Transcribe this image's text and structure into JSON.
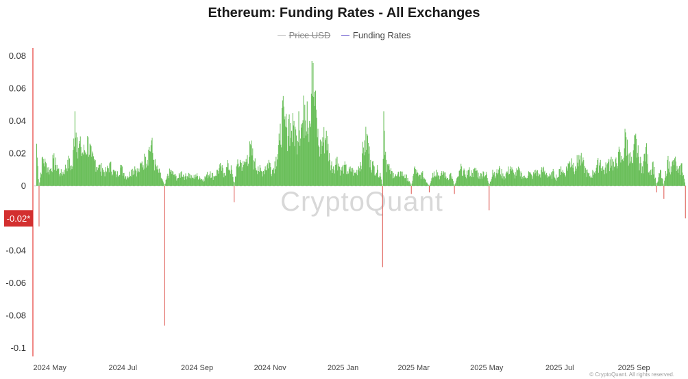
{
  "chart_data": {
    "type": "bar",
    "title": "Ethereum: Funding Rates - All Exchanges",
    "legend": [
      {
        "label": "Price USD",
        "color": "#bdbdbd",
        "disabled": true
      },
      {
        "label": "Funding Rates",
        "color": "#6a5acd",
        "disabled": false
      }
    ],
    "series": [
      {
        "name": "Funding Rates",
        "positive_color": "#6abf5a",
        "negative_color": "#e0605a"
      }
    ],
    "ylim": [
      -0.105,
      0.085
    ],
    "yticks": [
      {
        "value": 0.08,
        "label": "0.08"
      },
      {
        "value": 0.06,
        "label": "0.06"
      },
      {
        "value": 0.04,
        "label": "0.04"
      },
      {
        "value": 0.02,
        "label": "0.02"
      },
      {
        "value": 0,
        "label": "0"
      },
      {
        "value": -0.04,
        "label": "-0.04"
      },
      {
        "value": -0.06,
        "label": "-0.06"
      },
      {
        "value": -0.08,
        "label": "-0.08"
      },
      {
        "value": -0.1,
        "label": "-0.1"
      }
    ],
    "current_value": {
      "value": -0.02,
      "label": "-0.02*",
      "color": "#d32f2f"
    },
    "xticks": [
      {
        "date": "2024-05-01",
        "label": "2024 May"
      },
      {
        "date": "2024-07-01",
        "label": "2024 Jul"
      },
      {
        "date": "2024-09-01",
        "label": "2024 Sep"
      },
      {
        "date": "2024-11-01",
        "label": "2024 Nov"
      },
      {
        "date": "2025-01-01",
        "label": "2025 Jan"
      },
      {
        "date": "2025-03-01",
        "label": "2025 Mar"
      },
      {
        "date": "2025-05-01",
        "label": "2025 May"
      },
      {
        "date": "2025-07-01",
        "label": "2025 Jul"
      },
      {
        "date": "2025-09-01",
        "label": "2025 Sep"
      }
    ],
    "xlim": [
      "2024-04-18",
      "2025-10-15"
    ],
    "reference_line": {
      "value": 0,
      "style": "dashed"
    },
    "watermark": "CryptoQuant",
    "points": [
      [
        "2024-04-20",
        0.026
      ],
      [
        "2024-04-22",
        -0.025
      ],
      [
        "2024-04-25",
        0.018
      ],
      [
        "2024-04-28",
        0.014
      ],
      [
        "2024-05-01",
        0.01
      ],
      [
        "2024-05-04",
        0.017
      ],
      [
        "2024-05-07",
        0.013
      ],
      [
        "2024-05-10",
        0.008
      ],
      [
        "2024-05-13",
        0.01
      ],
      [
        "2024-05-16",
        0.016
      ],
      [
        "2024-05-20",
        0.012
      ],
      [
        "2024-05-22",
        0.046
      ],
      [
        "2024-05-24",
        0.03
      ],
      [
        "2024-05-27",
        0.024
      ],
      [
        "2024-05-30",
        0.022
      ],
      [
        "2024-06-02",
        0.03
      ],
      [
        "2024-06-05",
        0.018
      ],
      [
        "2024-06-08",
        0.016
      ],
      [
        "2024-06-11",
        0.013
      ],
      [
        "2024-06-14",
        0.011
      ],
      [
        "2024-06-17",
        0.009
      ],
      [
        "2024-06-20",
        0.014
      ],
      [
        "2024-06-23",
        0.01
      ],
      [
        "2024-06-26",
        0.007
      ],
      [
        "2024-06-29",
        0.013
      ],
      [
        "2024-07-02",
        0.008
      ],
      [
        "2024-07-05",
        0.006
      ],
      [
        "2024-07-08",
        0.01
      ],
      [
        "2024-07-11",
        0.012
      ],
      [
        "2024-07-14",
        0.009
      ],
      [
        "2024-07-17",
        0.015
      ],
      [
        "2024-07-20",
        0.018
      ],
      [
        "2024-07-23",
        0.024
      ],
      [
        "2024-07-25",
        0.028
      ],
      [
        "2024-07-27",
        0.016
      ],
      [
        "2024-07-29",
        0.012
      ],
      [
        "2024-08-01",
        0.008
      ],
      [
        "2024-08-03",
        0.004
      ],
      [
        "2024-08-05",
        -0.086
      ],
      [
        "2024-08-07",
        0.006
      ],
      [
        "2024-08-10",
        0.01
      ],
      [
        "2024-08-13",
        0.007
      ],
      [
        "2024-08-16",
        0.005
      ],
      [
        "2024-08-19",
        0.009
      ],
      [
        "2024-08-22",
        0.006
      ],
      [
        "2024-08-25",
        0.008
      ],
      [
        "2024-08-28",
        0.005
      ],
      [
        "2024-08-31",
        0.007
      ],
      [
        "2024-09-03",
        0.006
      ],
      [
        "2024-09-06",
        0.004
      ],
      [
        "2024-09-09",
        0.007
      ],
      [
        "2024-09-12",
        0.009
      ],
      [
        "2024-09-15",
        0.006
      ],
      [
        "2024-09-18",
        0.01
      ],
      [
        "2024-09-21",
        0.012
      ],
      [
        "2024-09-24",
        0.008
      ],
      [
        "2024-09-27",
        0.014
      ],
      [
        "2024-09-30",
        0.01
      ],
      [
        "2024-10-02",
        -0.01
      ],
      [
        "2024-10-04",
        0.012
      ],
      [
        "2024-10-07",
        0.016
      ],
      [
        "2024-10-10",
        0.013
      ],
      [
        "2024-10-13",
        0.019
      ],
      [
        "2024-10-16",
        0.025
      ],
      [
        "2024-10-19",
        0.015
      ],
      [
        "2024-10-22",
        0.012
      ],
      [
        "2024-10-25",
        0.009
      ],
      [
        "2024-10-28",
        0.012
      ],
      [
        "2024-10-31",
        0.016
      ],
      [
        "2024-11-03",
        0.01
      ],
      [
        "2024-11-06",
        0.018
      ],
      [
        "2024-11-09",
        0.028
      ],
      [
        "2024-11-11",
        0.048
      ],
      [
        "2024-11-13",
        0.041
      ],
      [
        "2024-11-15",
        0.036
      ],
      [
        "2024-11-17",
        0.044
      ],
      [
        "2024-11-19",
        0.034
      ],
      [
        "2024-11-21",
        0.04
      ],
      [
        "2024-11-23",
        0.031
      ],
      [
        "2024-11-25",
        0.046
      ],
      [
        "2024-11-27",
        0.038
      ],
      [
        "2024-11-30",
        0.05
      ],
      [
        "2024-12-02",
        0.052
      ],
      [
        "2024-12-04",
        0.04
      ],
      [
        "2024-12-06",
        0.077
      ],
      [
        "2024-12-08",
        0.058
      ],
      [
        "2024-12-10",
        0.042
      ],
      [
        "2024-12-12",
        0.024
      ],
      [
        "2024-12-15",
        0.03
      ],
      [
        "2024-12-18",
        0.034
      ],
      [
        "2024-12-21",
        0.016
      ],
      [
        "2024-12-24",
        0.012
      ],
      [
        "2024-12-27",
        0.018
      ],
      [
        "2024-12-30",
        0.01
      ],
      [
        "2025-01-02",
        0.013
      ],
      [
        "2025-01-05",
        0.009
      ],
      [
        "2025-01-08",
        0.011
      ],
      [
        "2025-01-11",
        0.008
      ],
      [
        "2025-01-14",
        0.012
      ],
      [
        "2025-01-17",
        0.02
      ],
      [
        "2025-01-19",
        0.028
      ],
      [
        "2025-01-21",
        0.032
      ],
      [
        "2025-01-24",
        0.016
      ],
      [
        "2025-01-27",
        0.012
      ],
      [
        "2025-01-30",
        0.01
      ],
      [
        "2025-02-01",
        0.008
      ],
      [
        "2025-02-03",
        -0.05
      ],
      [
        "2025-02-04",
        0.046
      ],
      [
        "2025-02-06",
        0.016
      ],
      [
        "2025-02-09",
        0.01
      ],
      [
        "2025-02-12",
        0.008
      ],
      [
        "2025-02-15",
        0.006
      ],
      [
        "2025-02-18",
        0.009
      ],
      [
        "2025-02-21",
        0.007
      ],
      [
        "2025-02-24",
        0.005
      ],
      [
        "2025-02-27",
        -0.005
      ],
      [
        "2025-03-02",
        0.012
      ],
      [
        "2025-03-05",
        0.006
      ],
      [
        "2025-03-08",
        0.008
      ],
      [
        "2025-03-11",
        0.004
      ],
      [
        "2025-03-14",
        -0.004
      ],
      [
        "2025-03-17",
        0.008
      ],
      [
        "2025-03-20",
        0.01
      ],
      [
        "2025-03-23",
        0.006
      ],
      [
        "2025-03-26",
        0.009
      ],
      [
        "2025-03-29",
        0.005
      ],
      [
        "2025-04-01",
        0.008
      ],
      [
        "2025-04-04",
        -0.005
      ],
      [
        "2025-04-07",
        0.006
      ],
      [
        "2025-04-10",
        0.012
      ],
      [
        "2025-04-13",
        0.007
      ],
      [
        "2025-04-16",
        0.01
      ],
      [
        "2025-04-19",
        0.008
      ],
      [
        "2025-04-22",
        0.011
      ],
      [
        "2025-04-25",
        0.006
      ],
      [
        "2025-04-28",
        0.009
      ],
      [
        "2025-05-01",
        0.007
      ],
      [
        "2025-05-03",
        -0.015
      ],
      [
        "2025-05-06",
        0.01
      ],
      [
        "2025-05-09",
        0.008
      ],
      [
        "2025-05-12",
        0.011
      ],
      [
        "2025-05-15",
        0.006
      ],
      [
        "2025-05-18",
        0.009
      ],
      [
        "2025-05-21",
        0.012
      ],
      [
        "2025-05-24",
        0.007
      ],
      [
        "2025-05-27",
        0.01
      ],
      [
        "2025-05-30",
        0.008
      ],
      [
        "2025-06-02",
        0.005
      ],
      [
        "2025-06-05",
        0.009
      ],
      [
        "2025-06-08",
        0.006
      ],
      [
        "2025-06-11",
        0.01
      ],
      [
        "2025-06-14",
        0.007
      ],
      [
        "2025-06-17",
        0.011
      ],
      [
        "2025-06-20",
        0.008
      ],
      [
        "2025-06-23",
        0.006
      ],
      [
        "2025-06-26",
        0.009
      ],
      [
        "2025-06-29",
        0.005
      ],
      [
        "2025-07-02",
        0.012
      ],
      [
        "2025-07-05",
        0.008
      ],
      [
        "2025-07-08",
        0.014
      ],
      [
        "2025-07-11",
        0.017
      ],
      [
        "2025-07-14",
        0.012
      ],
      [
        "2025-07-17",
        0.019
      ],
      [
        "2025-07-20",
        0.015
      ],
      [
        "2025-07-23",
        0.01
      ],
      [
        "2025-07-26",
        0.006
      ],
      [
        "2025-07-29",
        0.009
      ],
      [
        "2025-08-01",
        0.013
      ],
      [
        "2025-08-04",
        0.016
      ],
      [
        "2025-08-07",
        0.01
      ],
      [
        "2025-08-10",
        0.014
      ],
      [
        "2025-08-13",
        0.018
      ],
      [
        "2025-08-16",
        0.012
      ],
      [
        "2025-08-19",
        0.021
      ],
      [
        "2025-08-22",
        0.016
      ],
      [
        "2025-08-25",
        0.033
      ],
      [
        "2025-08-28",
        0.02
      ],
      [
        "2025-08-31",
        0.014
      ],
      [
        "2025-09-02",
        0.031
      ],
      [
        "2025-09-05",
        0.018
      ],
      [
        "2025-09-08",
        0.012
      ],
      [
        "2025-09-11",
        0.024
      ],
      [
        "2025-09-14",
        0.009
      ],
      [
        "2025-09-17",
        0.015
      ],
      [
        "2025-09-20",
        -0.004
      ],
      [
        "2025-09-23",
        0.01
      ],
      [
        "2025-09-26",
        -0.008
      ],
      [
        "2025-09-29",
        0.016
      ],
      [
        "2025-10-02",
        0.012
      ],
      [
        "2025-10-05",
        0.017
      ],
      [
        "2025-10-08",
        0.008
      ],
      [
        "2025-10-11",
        0.014
      ],
      [
        "2025-10-14",
        -0.02
      ]
    ]
  },
  "footer": {
    "credit": "© CryptoQuant. All rights reserved."
  }
}
